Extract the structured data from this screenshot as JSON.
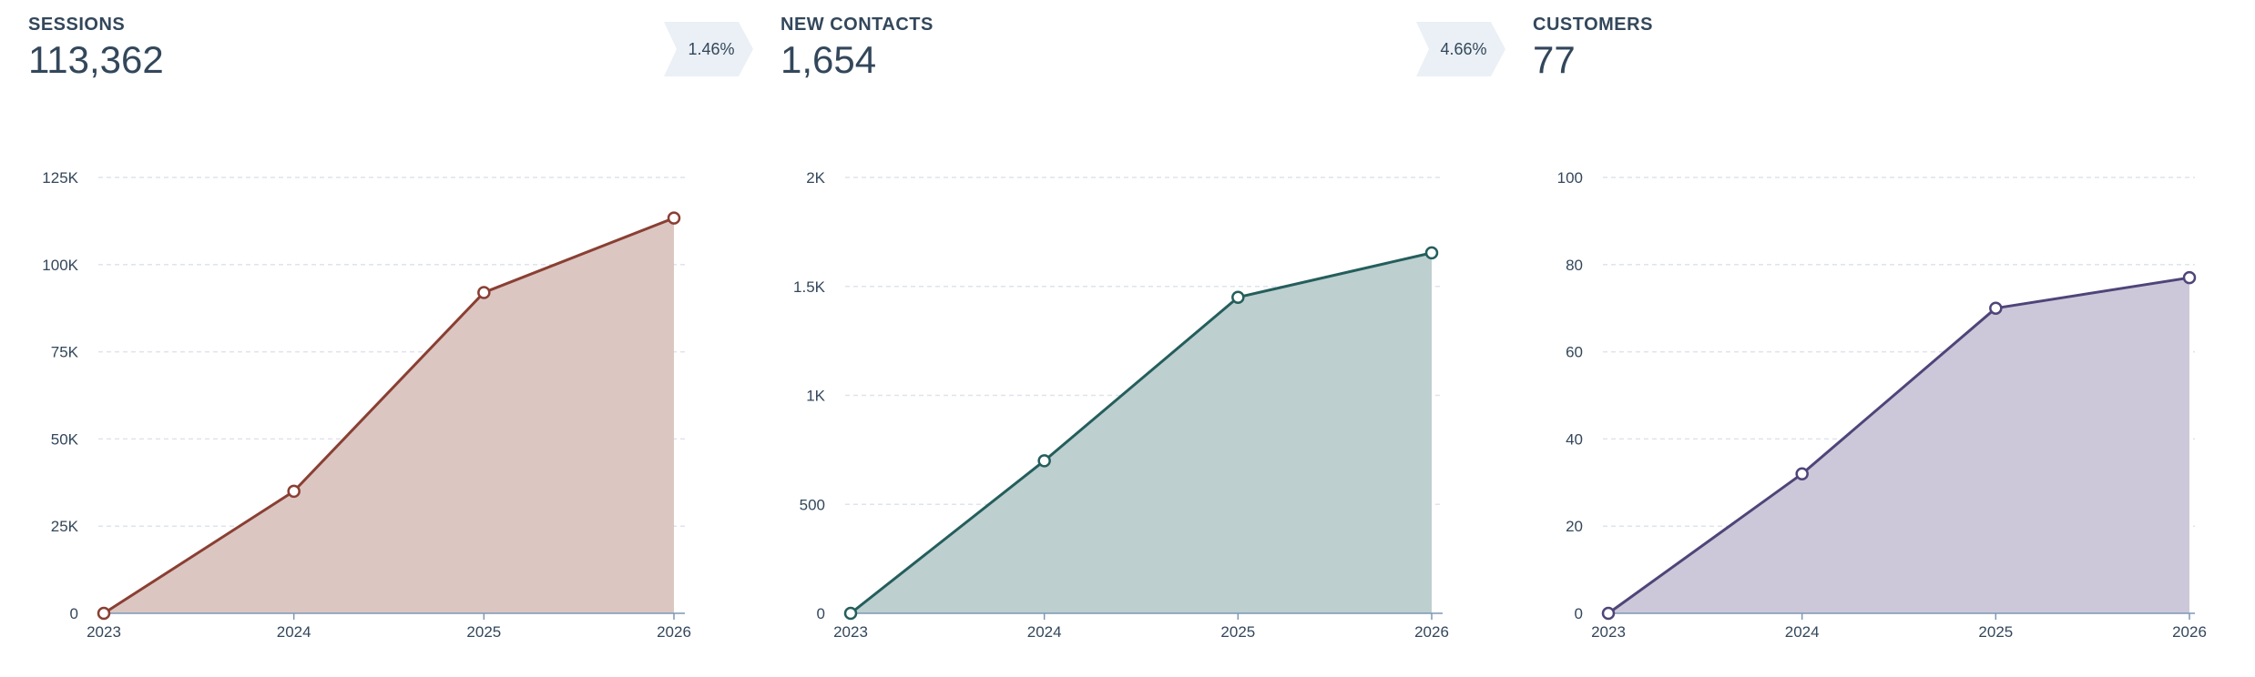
{
  "panels": [
    {
      "title": "SESSIONS",
      "value": "113,362",
      "badge": "1.46%"
    },
    {
      "title": "NEW CONTACTS",
      "value": "1,654",
      "badge": "4.66%"
    },
    {
      "title": "CUSTOMERS",
      "value": "77",
      "badge": ""
    }
  ],
  "chart_data": [
    {
      "type": "area",
      "title": "SESSIONS",
      "categories": [
        "2023",
        "2024",
        "2025",
        "2026"
      ],
      "values": [
        0,
        35000,
        92000,
        113362
      ],
      "ylim": [
        0,
        125000
      ],
      "yticks": [
        0,
        25000,
        50000,
        75000,
        100000,
        125000
      ],
      "ytick_labels": [
        "0",
        "25K",
        "50K",
        "75K",
        "100K",
        "125K"
      ],
      "grid": true,
      "color": "#8a3f33",
      "fill": "#dbc6c2"
    },
    {
      "type": "area",
      "title": "NEW CONTACTS",
      "categories": [
        "2023",
        "2024",
        "2025",
        "2026"
      ],
      "values": [
        0,
        700,
        1450,
        1654
      ],
      "ylim": [
        0,
        2000
      ],
      "yticks": [
        0,
        500,
        1000,
        1500,
        2000
      ],
      "ytick_labels": [
        "0",
        "500",
        "1K",
        "1.5K",
        "2K"
      ],
      "grid": true,
      "color": "#245e5c",
      "fill": "#bdcfcf"
    },
    {
      "type": "area",
      "title": "CUSTOMERS",
      "categories": [
        "2023",
        "2024",
        "2025",
        "2026"
      ],
      "values": [
        0,
        32,
        70,
        77
      ],
      "ylim": [
        0,
        100
      ],
      "yticks": [
        0,
        20,
        40,
        60,
        80,
        100
      ],
      "ytick_labels": [
        "0",
        "20",
        "40",
        "60",
        "80",
        "100"
      ],
      "grid": true,
      "color": "#4f4579",
      "fill": "#cdc8d9"
    }
  ]
}
